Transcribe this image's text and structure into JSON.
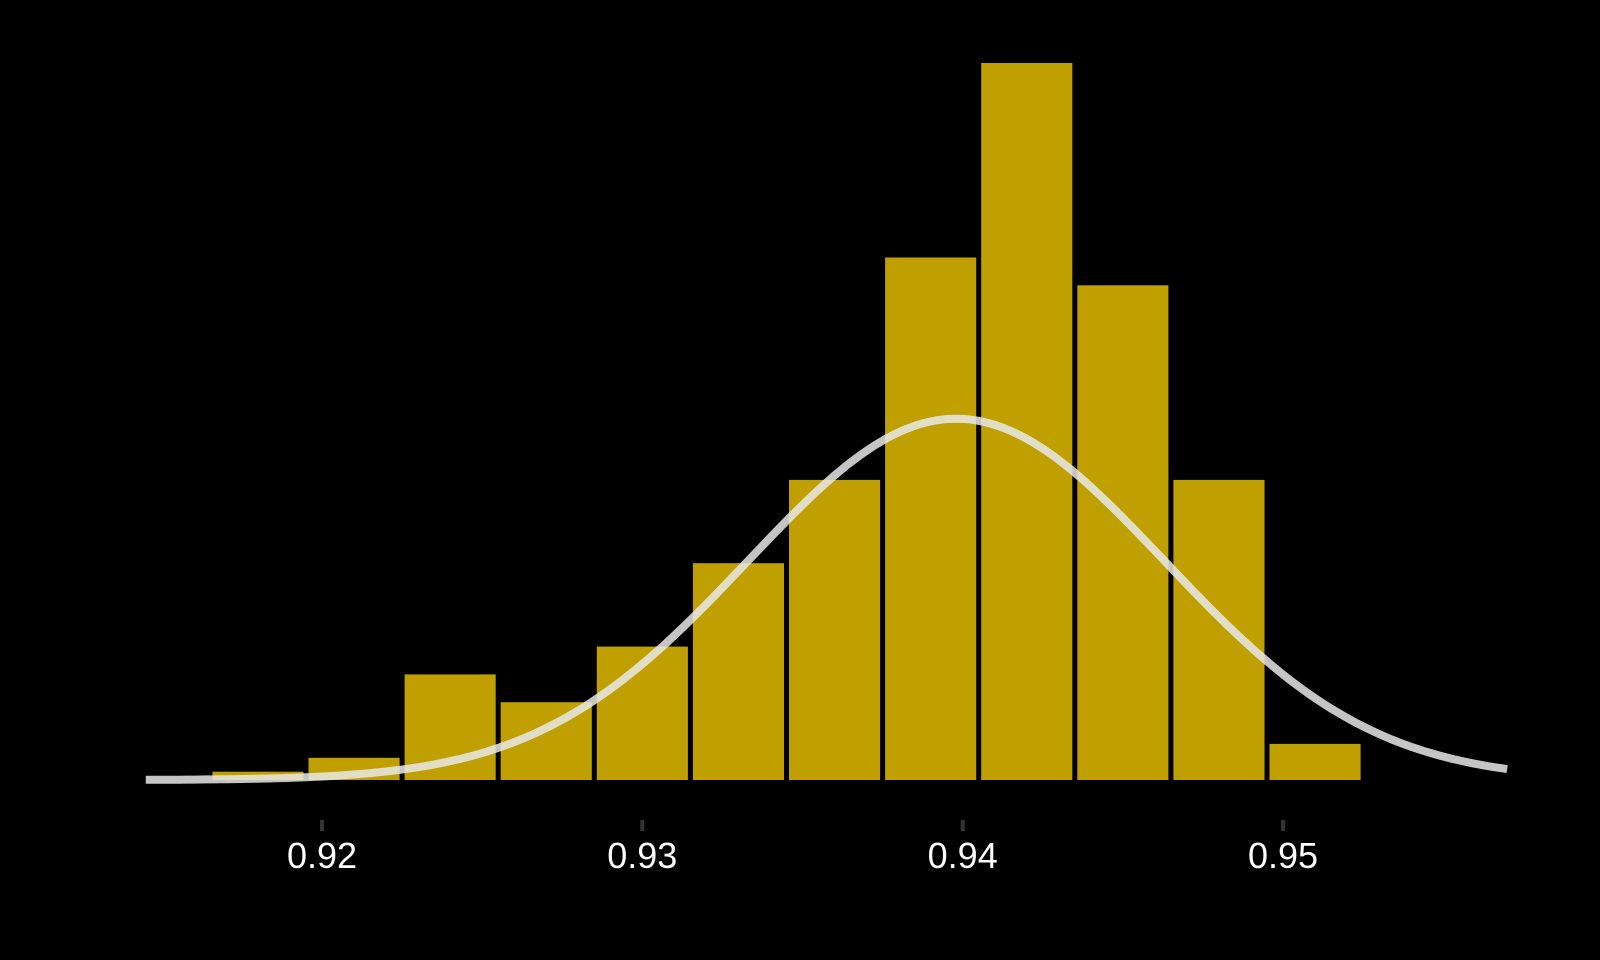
{
  "chart_data": {
    "type": "bar",
    "title": "",
    "xlabel": "",
    "ylabel": "",
    "xlim": [
      0.915,
      0.957
    ],
    "ylim": [
      0,
      26
    ],
    "bins": [
      {
        "x0": 0.9165,
        "x1": 0.9195,
        "count": 0.3
      },
      {
        "x0": 0.9195,
        "x1": 0.9225,
        "count": 0.8
      },
      {
        "x0": 0.9225,
        "x1": 0.9255,
        "count": 3.8
      },
      {
        "x0": 0.9255,
        "x1": 0.9285,
        "count": 2.8
      },
      {
        "x0": 0.9285,
        "x1": 0.9315,
        "count": 4.8
      },
      {
        "x0": 0.9315,
        "x1": 0.9345,
        "count": 7.8
      },
      {
        "x0": 0.9345,
        "x1": 0.9375,
        "count": 10.8
      },
      {
        "x0": 0.9375,
        "x1": 0.9405,
        "count": 18.8
      },
      {
        "x0": 0.9405,
        "x1": 0.9435,
        "count": 25.8
      },
      {
        "x0": 0.9435,
        "x1": 0.9465,
        "count": 17.8
      },
      {
        "x0": 0.9465,
        "x1": 0.9495,
        "count": 10.8
      },
      {
        "x0": 0.9495,
        "x1": 0.9525,
        "count": 1.3
      }
    ],
    "normal_curve": {
      "mean": 0.9398,
      "sd": 0.0065,
      "peak": 13.0,
      "x_range": [
        0.9145,
        0.957
      ]
    },
    "x_ticks": [
      {
        "value": 0.92,
        "label": "0.92"
      },
      {
        "value": 0.93,
        "label": "0.93"
      },
      {
        "value": 0.94,
        "label": "0.94"
      },
      {
        "value": 0.95,
        "label": "0.95"
      }
    ],
    "grid": false,
    "legend": "none",
    "colors": {
      "background": "#000000",
      "bar": "#C09F00",
      "curve": "#E8E8E8",
      "tick": "#333333",
      "text": "#FFFFFF"
    }
  }
}
